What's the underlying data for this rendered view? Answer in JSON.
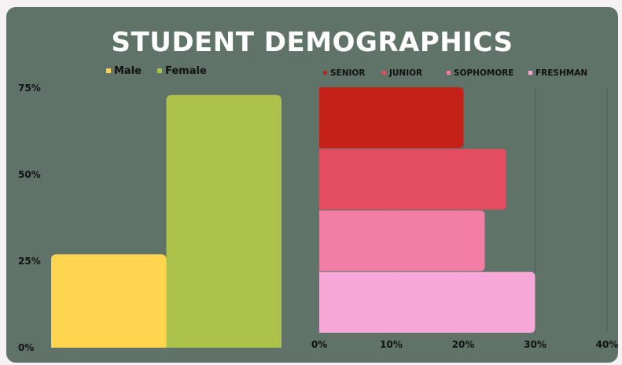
{
  "title": "STUDENT DEMOGRAPHICS",
  "chart_data": [
    {
      "type": "bar",
      "orientation": "vertical",
      "categories": [
        "Male",
        "Female"
      ],
      "values": [
        27,
        73
      ],
      "colors": [
        "#ffd54f",
        "#adc24a"
      ],
      "legend": {
        "placement": "top",
        "entries": [
          "Male",
          "Female"
        ]
      },
      "ylim": [
        0,
        75
      ],
      "yticks": [
        "0%",
        "25%",
        "50%",
        "75%"
      ],
      "grid": false
    },
    {
      "type": "bar",
      "orientation": "horizontal",
      "categories": [
        "SENIOR",
        "JUNIOR",
        "SOPHOMORE",
        "FRESHMAN"
      ],
      "values": [
        20,
        26,
        23,
        30
      ],
      "colors": [
        "#c52118",
        "#e44c62",
        "#f27ea5",
        "#f8a7d9"
      ],
      "legend": {
        "placement": "top",
        "entries": [
          "SENIOR",
          "JUNIOR",
          "SOPHOMORE",
          "FRESHMAN"
        ]
      },
      "xlim": [
        0,
        40
      ],
      "xticks": [
        "0%",
        "10%",
        "20%",
        "30%",
        "40%"
      ],
      "grid": true
    }
  ]
}
